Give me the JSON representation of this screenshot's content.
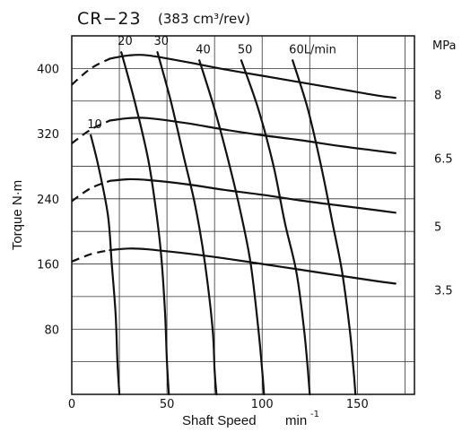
{
  "chart_data": {
    "type": "line",
    "title": "CR−23",
    "subtitle": "(383 cm³/rev)",
    "xlabel": "Shaft Speed",
    "xlabel_unit": "min",
    "xlabel_unit_sup": "-1",
    "ylabel": "Torque  N·m",
    "xlim": [
      0,
      180
    ],
    "ylim": [
      0,
      440
    ],
    "x_ticks": [
      "0",
      "50",
      "100",
      "150"
    ],
    "y_ticks": [
      "80",
      "160",
      "240",
      "320",
      "400"
    ],
    "pressure_axis_label": "MPa",
    "grid": true,
    "pressure_series": [
      {
        "name": "8",
        "label_at_torque": 368,
        "x": [
          -5,
          10,
          20,
          30,
          40,
          60,
          80,
          100,
          120,
          140,
          160,
          170
        ],
        "y": [
          380,
          400,
          412,
          416,
          416,
          408,
          399,
          391,
          383,
          375,
          367,
          364
        ],
        "dashed_until_x": 20
      },
      {
        "name": "6.5",
        "label_at_torque": 290,
        "x": [
          -5,
          10,
          20,
          30,
          40,
          60,
          80,
          100,
          120,
          140,
          160,
          170
        ],
        "y": [
          308,
          325,
          336,
          339,
          339,
          333,
          325,
          318,
          312,
          305,
          299,
          296
        ],
        "dashed_until_x": 20
      },
      {
        "name": "5",
        "label_at_torque": 206,
        "x": [
          -5,
          10,
          20,
          30,
          40,
          60,
          80,
          100,
          120,
          140,
          160,
          170
        ],
        "y": [
          237,
          253,
          262,
          264,
          263,
          258,
          251,
          245,
          238,
          232,
          226,
          223
        ],
        "dashed_until_x": 20
      },
      {
        "name": "3.5",
        "label_at_torque": 128,
        "x": [
          -5,
          10,
          20,
          30,
          40,
          60,
          80,
          100,
          120,
          140,
          160,
          170
        ],
        "y": [
          163,
          172,
          177,
          179,
          178,
          173,
          167,
          160,
          153,
          146,
          139,
          136
        ],
        "dashed_until_x": 20
      }
    ],
    "flow_series": [
      {
        "name": "10",
        "x": [
          10,
          14,
          19,
          21,
          23,
          24,
          25
        ],
        "y": [
          318,
          280,
          220,
          160,
          100,
          40,
          0
        ]
      },
      {
        "name": "20",
        "x": [
          26,
          33,
          40,
          44,
          47,
          49,
          50,
          51
        ],
        "y": [
          420,
          360,
          290,
          230,
          170,
          100,
          40,
          0
        ]
      },
      {
        "name": "30",
        "x": [
          45,
          52,
          59,
          65,
          70,
          74,
          75,
          76
        ],
        "y": [
          420,
          360,
          290,
          230,
          160,
          80,
          30,
          0
        ]
      },
      {
        "name": "40",
        "x": [
          67,
          75,
          83,
          89,
          94,
          98,
          100,
          101
        ],
        "y": [
          410,
          350,
          280,
          220,
          160,
          80,
          30,
          0
        ]
      },
      {
        "name": "50",
        "x": [
          89,
          98,
          106,
          112,
          118,
          122,
          124,
          125
        ],
        "y": [
          410,
          350,
          280,
          210,
          150,
          80,
          30,
          0
        ]
      },
      {
        "name": "60L/min",
        "x": [
          116,
          124,
          131,
          137,
          142,
          146,
          148,
          149
        ],
        "y": [
          410,
          350,
          280,
          210,
          150,
          80,
          30,
          0
        ]
      }
    ]
  }
}
